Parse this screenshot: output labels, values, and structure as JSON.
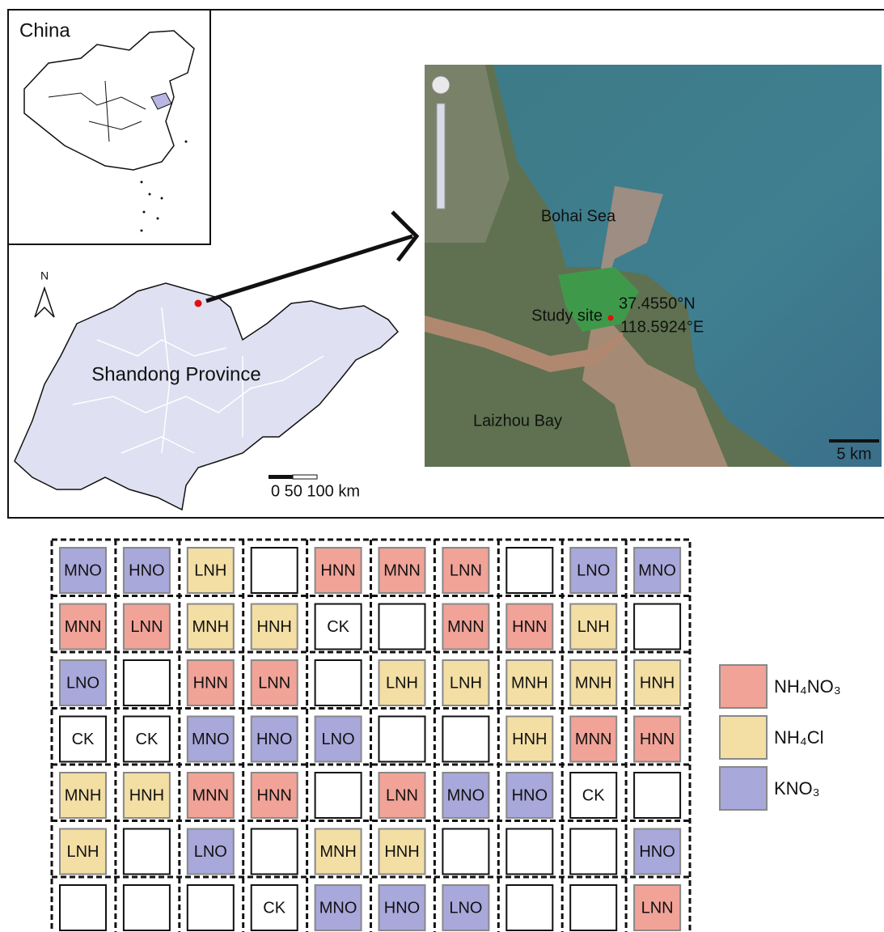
{
  "maps": {
    "inset_label": "China",
    "province_label": "Shandong Province",
    "north": "N",
    "province_scale": "0 50 100 km",
    "sea_label": "Bohai Sea",
    "bay_label": "Laizhou Bay",
    "site_label": "Study site",
    "latitude": "37.4550°N",
    "longitude": "118.5924°E",
    "image_scale": "5 km"
  },
  "plot_grid": {
    "rows": [
      [
        {
          "label": "MNO",
          "color": "#a9a8db"
        },
        {
          "label": "HNO",
          "color": "#a9a8db"
        },
        {
          "label": "LNH",
          "color": "#f3dfa4"
        },
        null,
        {
          "label": "HNN",
          "color": "#f1a398"
        },
        {
          "label": "MNN",
          "color": "#f1a398"
        },
        {
          "label": "LNN",
          "color": "#f1a398"
        },
        null,
        {
          "label": "LNO",
          "color": "#a9a8db"
        },
        {
          "label": "MNO",
          "color": "#a9a8db"
        }
      ],
      [
        {
          "label": "MNN",
          "color": "#f1a398"
        },
        {
          "label": "LNN",
          "color": "#f1a398"
        },
        {
          "label": "MNH",
          "color": "#f3dfa4"
        },
        {
          "label": "HNH",
          "color": "#f3dfa4"
        },
        {
          "label": "CK",
          "color": "#ffffff"
        },
        null,
        {
          "label": "MNN",
          "color": "#f1a398"
        },
        {
          "label": "HNN",
          "color": "#f1a398"
        },
        {
          "label": "LNH",
          "color": "#f3dfa4"
        },
        null
      ],
      [
        {
          "label": "LNO",
          "color": "#a9a8db"
        },
        null,
        {
          "label": "HNN",
          "color": "#f1a398"
        },
        {
          "label": "LNN",
          "color": "#f1a398"
        },
        null,
        {
          "label": "LNH",
          "color": "#f3dfa4"
        },
        {
          "label": "LNH",
          "color": "#f3dfa4"
        },
        {
          "label": "MNH",
          "color": "#f3dfa4"
        },
        {
          "label": "MNH",
          "color": "#f3dfa4"
        },
        {
          "label": "HNH",
          "color": "#f3dfa4"
        }
      ],
      [
        {
          "label": "CK",
          "color": "#ffffff"
        },
        {
          "label": "CK",
          "color": "#ffffff"
        },
        {
          "label": "MNO",
          "color": "#a9a8db"
        },
        {
          "label": "HNO",
          "color": "#a9a8db"
        },
        {
          "label": "LNO",
          "color": "#a9a8db"
        },
        null,
        null,
        {
          "label": "HNH",
          "color": "#f3dfa4"
        },
        {
          "label": "MNN",
          "color": "#f1a398"
        },
        {
          "label": "HNN",
          "color": "#f1a398"
        }
      ],
      [
        {
          "label": "MNH",
          "color": "#f3dfa4"
        },
        {
          "label": "HNH",
          "color": "#f3dfa4"
        },
        {
          "label": "MNN",
          "color": "#f1a398"
        },
        {
          "label": "HNN",
          "color": "#f1a398"
        },
        null,
        {
          "label": "LNN",
          "color": "#f1a398"
        },
        {
          "label": "MNO",
          "color": "#a9a8db"
        },
        {
          "label": "HNO",
          "color": "#a9a8db"
        },
        {
          "label": "CK",
          "color": "#ffffff"
        },
        null
      ],
      [
        {
          "label": "LNH",
          "color": "#f3dfa4"
        },
        null,
        {
          "label": "LNO",
          "color": "#a9a8db"
        },
        null,
        {
          "label": "MNH",
          "color": "#f3dfa4"
        },
        {
          "label": "HNH",
          "color": "#f3dfa4"
        },
        null,
        null,
        null,
        {
          "label": "HNO",
          "color": "#a9a8db"
        }
      ],
      [
        null,
        null,
        null,
        {
          "label": "CK",
          "color": "#ffffff"
        },
        {
          "label": "MNO",
          "color": "#a9a8db"
        },
        {
          "label": "HNO",
          "color": "#a9a8db"
        },
        {
          "label": "LNO",
          "color": "#a9a8db"
        },
        null,
        null,
        {
          "label": "LNN",
          "color": "#f1a398"
        }
      ]
    ],
    "legend": [
      {
        "label": "NH₄NO₃",
        "color": "#f1a398"
      },
      {
        "label": "NH₄Cl",
        "color": "#f3dfa4"
      },
      {
        "label": "KNO₃",
        "color": "#a9a8db"
      }
    ]
  }
}
